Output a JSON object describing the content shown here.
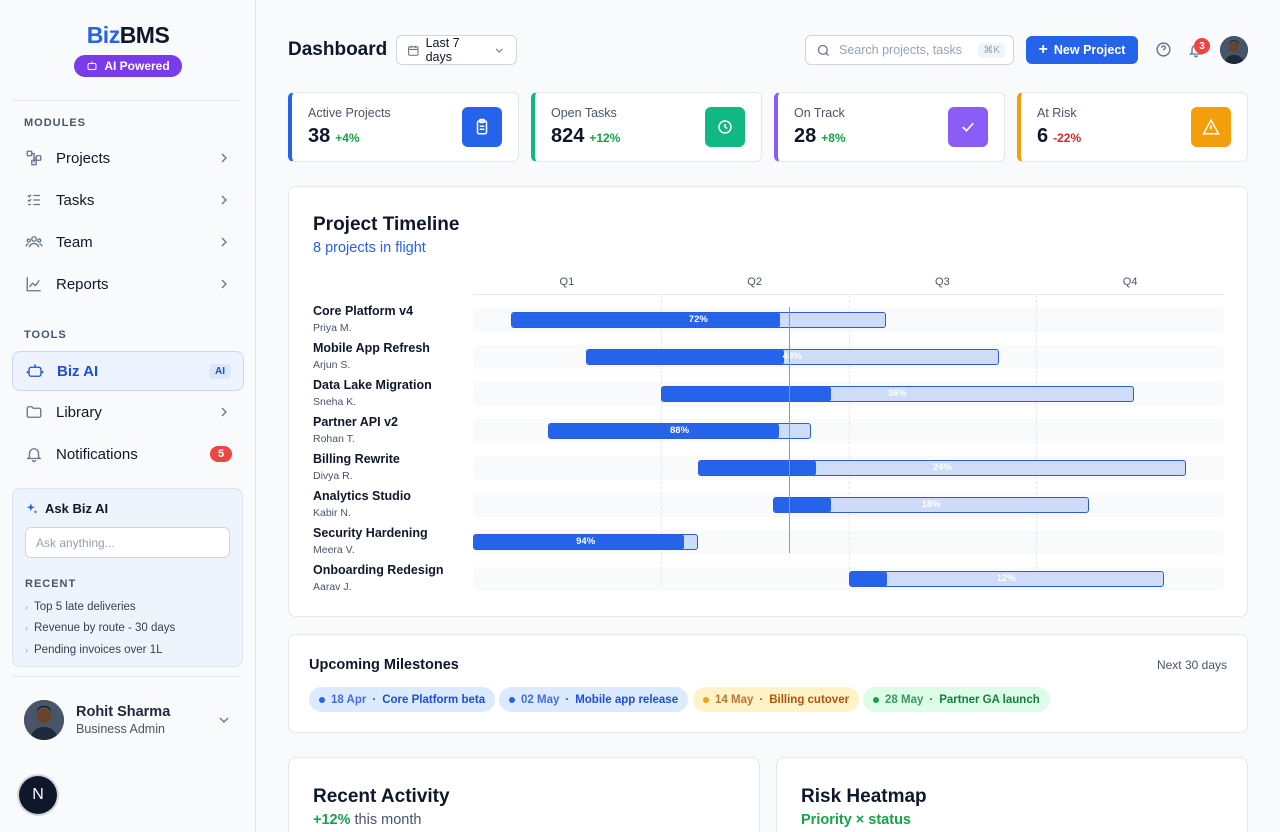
{
  "brand": {
    "prefix": "Biz",
    "suffix": "BMS",
    "badge": "AI Powered"
  },
  "sidebar": {
    "modules_heading": "MODULES",
    "modules": [
      {
        "label": "Projects",
        "icon": "projects-icon"
      },
      {
        "label": "Tasks",
        "icon": "tasks-icon"
      },
      {
        "label": "Team",
        "icon": "team-icon"
      },
      {
        "label": "Reports",
        "icon": "reports-icon"
      }
    ],
    "tools_heading": "TOOLS",
    "tools": [
      {
        "label": "Biz AI",
        "tag": "AI",
        "active": true
      },
      {
        "label": "Library"
      },
      {
        "label": "Notifications",
        "badge": "5"
      }
    ],
    "ask": {
      "title": "Ask Biz AI",
      "placeholder": "Ask anything...",
      "recent_heading": "RECENT",
      "recent": [
        "Top 5 late deliveries",
        "Revenue by route - 30 days",
        "Pending invoices over 1L"
      ]
    },
    "user": {
      "name": "Rohit Sharma",
      "role": "Business Admin"
    },
    "fab_letter": "N"
  },
  "header": {
    "title": "Dashboard",
    "date_range": "Last 7 days",
    "search_placeholder": "Search projects, tasks",
    "search_shortcut": "⌘K",
    "new_project": "New Project",
    "notification_count": "3"
  },
  "kpis": [
    {
      "label": "Active Projects",
      "value": "38",
      "delta": "+4%",
      "color": "#2563eb",
      "delta_color": "#16a34a",
      "icon": "clipboard-icon"
    },
    {
      "label": "Open Tasks",
      "value": "824",
      "delta": "+12%",
      "color": "#10b981",
      "delta_color": "#16a34a",
      "icon": "clock-icon"
    },
    {
      "label": "On Track",
      "value": "28",
      "delta": "+8%",
      "color": "#8b5cf6",
      "delta_color": "#16a34a",
      "icon": "check-icon"
    },
    {
      "label": "At Risk",
      "value": "6",
      "delta": "-22%",
      "color": "#f59e0b",
      "delta_color": "#dc2626",
      "icon": "warning-icon"
    }
  ],
  "timeline": {
    "title": "Project Timeline",
    "subtitle": "8 projects in flight",
    "quarters": [
      "Q1",
      "Q2",
      "Q3",
      "Q4"
    ],
    "today_fraction": 0.421,
    "projects": [
      {
        "name": "Core Platform v4",
        "owner": "Priya M.",
        "start": 0.05,
        "end": 0.55,
        "progress": 72,
        "label": "72%"
      },
      {
        "name": "Mobile App Refresh",
        "owner": "Arjun S.",
        "start": 0.15,
        "end": 0.7,
        "progress": 48,
        "label": "48%"
      },
      {
        "name": "Data Lake Migration",
        "owner": "Sneha K.",
        "start": 0.25,
        "end": 0.88,
        "progress": 36,
        "label": "36%"
      },
      {
        "name": "Partner API v2",
        "owner": "Rohan T.",
        "start": 0.1,
        "end": 0.45,
        "progress": 88,
        "label": "88%"
      },
      {
        "name": "Billing Rewrite",
        "owner": "Divya R.",
        "start": 0.3,
        "end": 0.95,
        "progress": 24,
        "label": "24%"
      },
      {
        "name": "Analytics Studio",
        "owner": "Kabir N.",
        "start": 0.4,
        "end": 0.82,
        "progress": 18,
        "label": "18%"
      },
      {
        "name": "Security Hardening",
        "owner": "Meera V.",
        "start": 0.0,
        "end": 0.3,
        "progress": 94,
        "label": "94%"
      },
      {
        "name": "Onboarding Redesign",
        "owner": "Aarav J.",
        "start": 0.5,
        "end": 0.92,
        "progress": 12,
        "label": "12%"
      }
    ]
  },
  "milestones": {
    "title": "Upcoming Milestones",
    "range": "Next 30 days",
    "items": [
      {
        "date": "18 Apr",
        "sep": "·",
        "label": "Core Platform beta",
        "bg": "#dbeafe",
        "fg": "#1d4ed8",
        "dot": "#2563eb"
      },
      {
        "date": "02 May",
        "sep": "·",
        "label": "Mobile app release",
        "bg": "#dbeafe",
        "fg": "#1d4ed8",
        "dot": "#2563eb"
      },
      {
        "date": "14 May",
        "sep": "·",
        "label": "Billing cutover",
        "bg": "#fef3c7",
        "fg": "#b45309",
        "dot": "#f59e0b"
      },
      {
        "date": "28 May",
        "sep": "·",
        "label": "Partner GA launch",
        "bg": "#dcfce7",
        "fg": "#15803d",
        "dot": "#16a34a"
      }
    ]
  },
  "activity": {
    "title": "Recent Activity",
    "delta": "+12%",
    "period": "this month"
  },
  "heatmap": {
    "title": "Risk Heatmap",
    "subtitle": "Priority × status"
  }
}
